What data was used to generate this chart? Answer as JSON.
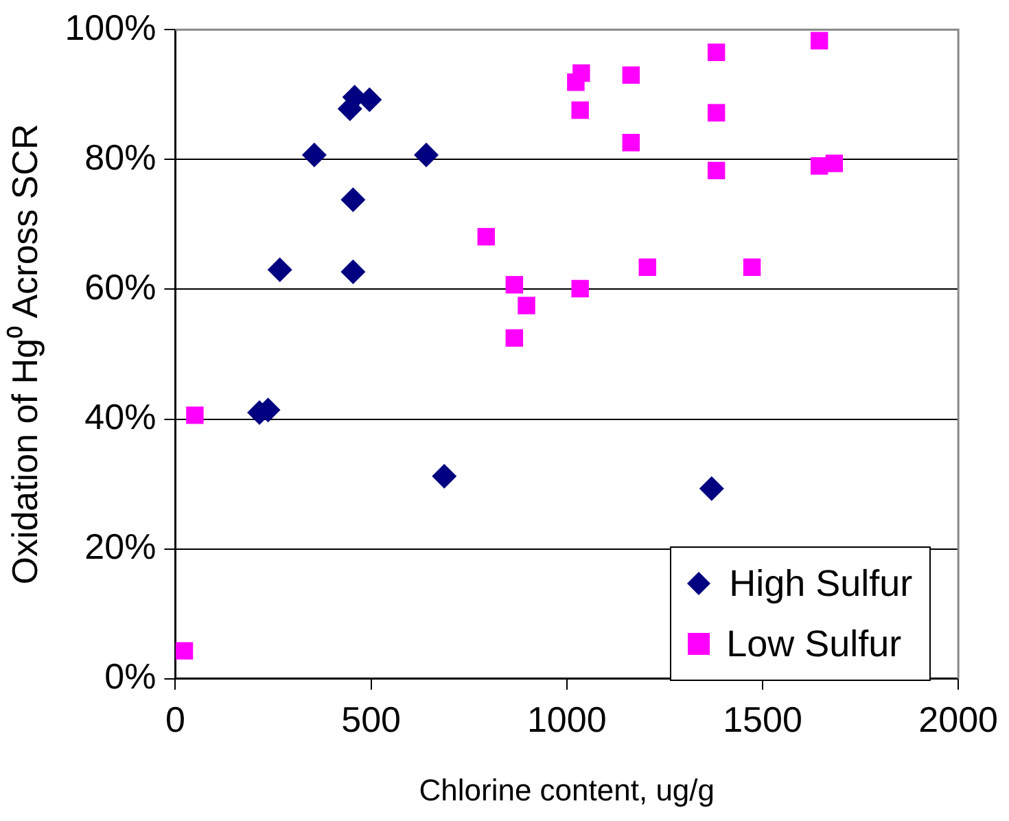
{
  "chart_data": {
    "type": "scatter",
    "xlabel": "Chlorine content, ug/g",
    "ylabel": "Oxidation of Hg⁰ Across SCR",
    "xlim": [
      0,
      2000
    ],
    "xticks": [
      0,
      500,
      1000,
      1500,
      2000
    ],
    "ylim": [
      0,
      100
    ],
    "yticks": [
      {
        "value": 0,
        "label": "0%"
      },
      {
        "value": 20,
        "label": "20%"
      },
      {
        "value": 40,
        "label": "40%"
      },
      {
        "value": 60,
        "label": "60%"
      },
      {
        "value": 80,
        "label": "80%"
      },
      {
        "value": 100,
        "label": "100%"
      }
    ],
    "grid": "y",
    "legend": "bottom right",
    "series": [
      {
        "name": "High Sulfur",
        "color": "#000080",
        "marker": "diamond",
        "x": [
          215,
          237,
          267,
          355,
          454,
          454,
          446,
          458,
          496,
          641,
          687,
          1370
        ],
        "values": [
          41,
          41.4,
          63,
          80.7,
          73.8,
          62.7,
          87.8,
          89.6,
          89.2,
          80.7,
          31.2,
          29.3
        ]
      },
      {
        "name": "Low Sulfur",
        "color": "#ff00ff",
        "marker": "square",
        "x": [
          23,
          50,
          794,
          866,
          897,
          866,
          1034,
          1034,
          1037,
          1023,
          1164,
          1164,
          1206,
          1382,
          1382,
          1382,
          1473,
          1645,
          1645,
          1683
        ],
        "values": [
          4.3,
          40.6,
          68.1,
          60.7,
          57.5,
          52.5,
          60.1,
          87.6,
          93.3,
          91.9,
          93,
          82.6,
          63.4,
          96.5,
          87.2,
          78.3,
          63.4,
          98.3,
          79,
          79.4
        ]
      }
    ]
  }
}
